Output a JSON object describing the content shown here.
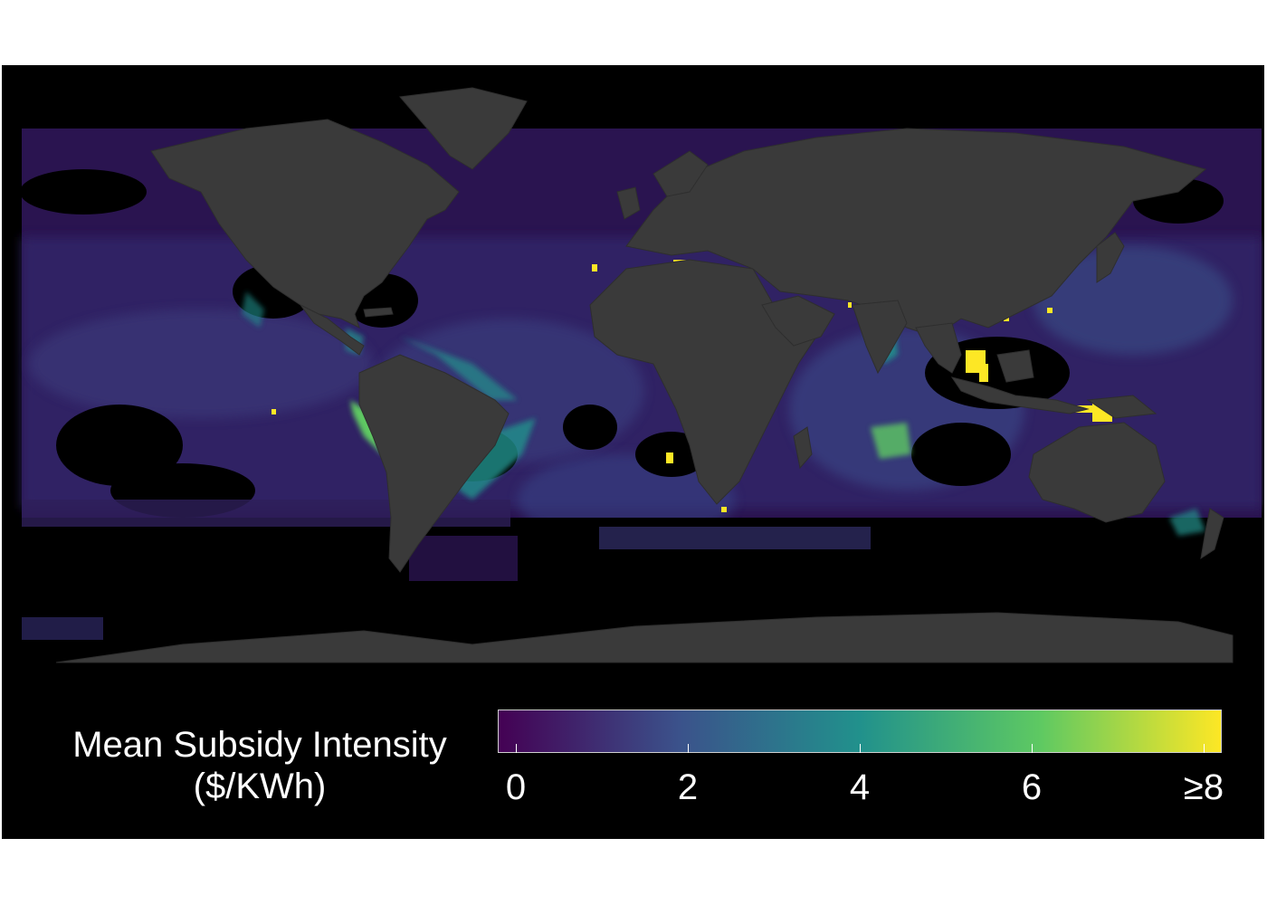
{
  "legend": {
    "title_line1": "Mean Subsidy Intensity",
    "title_line2": "($/KWh)",
    "colors": [
      "#440154",
      "#3b528b",
      "#21918c",
      "#5ec962",
      "#fde725"
    ],
    "ticks": [
      {
        "value": 0,
        "label": "0"
      },
      {
        "value": 2,
        "label": "2"
      },
      {
        "value": 4,
        "label": "4"
      },
      {
        "value": 6,
        "label": "6"
      },
      {
        "value": 8,
        "label": "≥8"
      }
    ],
    "range": [
      0,
      8
    ]
  },
  "map": {
    "background": "#000000",
    "land_color": "#3a3a3a",
    "ocean_base_color": "#2a1450"
  }
}
